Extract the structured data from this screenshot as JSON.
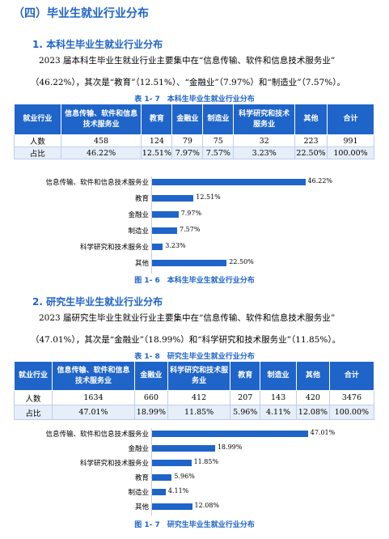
{
  "section_title": "（四）毕业生就业行业分布",
  "undergrad": {
    "heading": "1. 本科生毕业生就业行业分布",
    "para_line1": "2023 届本科生毕业生就业行业主要集中在“信息传输、软件和信息技术服务业”",
    "para_line2": "（46.22%），其次是“教育”（12.51%）、“金融业”（7.97%）和“制造业”（7.57%）。",
    "table_caption": "表 1- 7　本科生毕业生就业行业分布",
    "table": {
      "headers": [
        "就业行业",
        "信息传输、软件和信息技术服务业",
        "教育",
        "金融业",
        "制造业",
        "科学研究和技术服务业",
        "其他",
        "合计"
      ],
      "rows": [
        [
          "人数",
          "458",
          "124",
          "79",
          "75",
          "32",
          "223",
          "991"
        ],
        [
          "占比",
          "46.22%",
          "12.51%",
          "7.97%",
          "7.57%",
          "3.23%",
          "22.50%",
          "100.00%"
        ]
      ]
    },
    "figure_caption": "图 1- 6　本科生毕业生就业行业分布"
  },
  "graduate": {
    "heading": "2. 研究生毕业生就业行业分布",
    "para_line1": "2023 届研究生毕业生就业行业主要集中在“信息传输、软件和信息技术服务业”",
    "para_line2": "（47.01%），其次是“金融业”（18.99%）和“科学研究和技术服务业”（11.85%）。",
    "table_caption": "表 1- 8　研究生毕业生就业行业分布",
    "table": {
      "headers": [
        "就业行业",
        "信息传输、软件和信息技术服务业",
        "金融业",
        "科学研究和技术服务业",
        "教育",
        "制造业",
        "其他",
        "合计"
      ],
      "rows": [
        [
          "人数",
          "1634",
          "660",
          "412",
          "207",
          "143",
          "420",
          "3476"
        ],
        [
          "占比",
          "47.01%",
          "18.99%",
          "11.85%",
          "5.96%",
          "4.11%",
          "12.08%",
          "100.00%"
        ]
      ]
    },
    "figure_caption": "图 1- 7　研究生毕业生就业行业分布"
  },
  "chart_data": [
    {
      "type": "bar",
      "orientation": "horizontal",
      "categories": [
        "信息传输、软件和信息技术服务业",
        "教育",
        "金融业",
        "制造业",
        "科学研究和技术服务业",
        "其他"
      ],
      "values": [
        46.22,
        12.51,
        7.97,
        7.57,
        3.23,
        22.5
      ],
      "value_labels": [
        "46.22%",
        "12.51%",
        "7.97%",
        "7.57%",
        "3.23%",
        "22.50%"
      ],
      "color": "#1f64c8"
    },
    {
      "type": "bar",
      "orientation": "horizontal",
      "categories": [
        "信息传输、软件和信息技术服务业",
        "金融业",
        "科学研究和技术服务业",
        "教育",
        "制造业",
        "其他"
      ],
      "values": [
        47.01,
        18.99,
        11.85,
        5.96,
        4.11,
        12.08
      ],
      "value_labels": [
        "47.01%",
        "18.99%",
        "11.85%",
        "5.96%",
        "4.11%",
        "12.08%"
      ],
      "color": "#1f64c8"
    }
  ]
}
